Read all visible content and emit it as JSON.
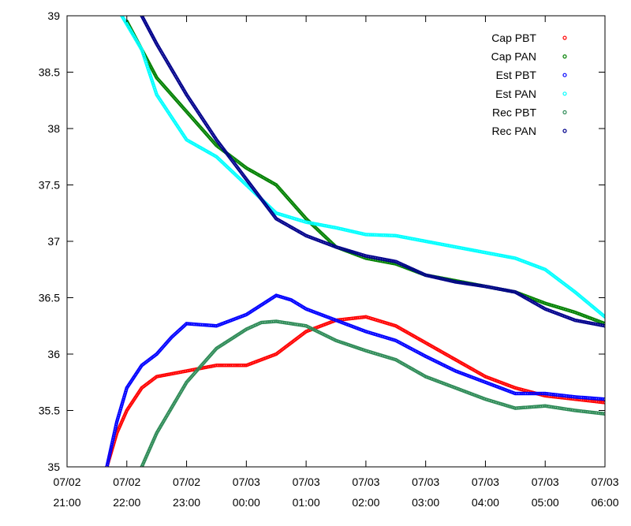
{
  "chart_data": {
    "type": "scatter",
    "title": "",
    "xlabel": "",
    "ylabel": "",
    "xlim": [
      "07/02 21:00",
      "07/03 06:00"
    ],
    "ylim": [
      35,
      39
    ],
    "x_ticks": [
      {
        "date": "07/02",
        "time": "21:00"
      },
      {
        "date": "07/02",
        "time": "22:00"
      },
      {
        "date": "07/02",
        "time": "23:00"
      },
      {
        "date": "07/03",
        "time": "00:00"
      },
      {
        "date": "07/03",
        "time": "01:00"
      },
      {
        "date": "07/03",
        "time": "02:00"
      },
      {
        "date": "07/03",
        "time": "03:00"
      },
      {
        "date": "07/03",
        "time": "04:00"
      },
      {
        "date": "07/03",
        "time": "05:00"
      },
      {
        "date": "07/03",
        "time": "06:00"
      }
    ],
    "y_ticks": [
      "35",
      "35.5",
      "36",
      "36.5",
      "37",
      "37.5",
      "38",
      "38.5",
      "39"
    ],
    "grid": false,
    "legend_position": "top-right",
    "series": [
      {
        "name": "Cap PBT",
        "color": "#ff0000",
        "points": [
          [
            "07/02 21:40",
            35.0
          ],
          [
            "07/02 21:50",
            35.3
          ],
          [
            "07/02 22:00",
            35.5
          ],
          [
            "07/02 22:15",
            35.7
          ],
          [
            "07/02 22:30",
            35.8
          ],
          [
            "07/02 23:00",
            35.85
          ],
          [
            "07/02 23:30",
            35.9
          ],
          [
            "07/03 00:00",
            35.9
          ],
          [
            "07/03 00:30",
            36.0
          ],
          [
            "07/03 00:45",
            36.1
          ],
          [
            "07/03 01:00",
            36.2
          ],
          [
            "07/03 01:30",
            36.3
          ],
          [
            "07/03 02:00",
            36.33
          ],
          [
            "07/03 02:30",
            36.25
          ],
          [
            "07/03 03:00",
            36.1
          ],
          [
            "07/03 03:30",
            35.95
          ],
          [
            "07/03 04:00",
            35.8
          ],
          [
            "07/03 04:30",
            35.7
          ],
          [
            "07/03 05:00",
            35.63
          ],
          [
            "07/03 05:30",
            35.6
          ],
          [
            "07/03 06:00",
            35.57
          ]
        ]
      },
      {
        "name": "Cap PAN",
        "color": "#008000",
        "points": [
          [
            "07/02 22:00",
            38.95
          ],
          [
            "07/02 22:15",
            38.7
          ],
          [
            "07/02 22:30",
            38.45
          ],
          [
            "07/02 23:00",
            38.15
          ],
          [
            "07/02 23:30",
            37.85
          ],
          [
            "07/03 00:00",
            37.65
          ],
          [
            "07/03 00:30",
            37.5
          ],
          [
            "07/03 00:45",
            37.35
          ],
          [
            "07/03 01:00",
            37.2
          ],
          [
            "07/03 01:30",
            36.95
          ],
          [
            "07/03 02:00",
            36.85
          ],
          [
            "07/03 02:30",
            36.8
          ],
          [
            "07/03 03:00",
            36.7
          ],
          [
            "07/03 03:30",
            36.65
          ],
          [
            "07/03 04:00",
            36.6
          ],
          [
            "07/03 04:30",
            36.55
          ],
          [
            "07/03 05:00",
            36.45
          ],
          [
            "07/03 05:30",
            36.37
          ],
          [
            "07/03 06:00",
            36.27
          ]
        ]
      },
      {
        "name": "Est PBT",
        "color": "#0000ff",
        "points": [
          [
            "07/02 21:40",
            35.0
          ],
          [
            "07/02 21:50",
            35.4
          ],
          [
            "07/02 22:00",
            35.7
          ],
          [
            "07/02 22:15",
            35.9
          ],
          [
            "07/02 22:30",
            36.0
          ],
          [
            "07/02 22:45",
            36.15
          ],
          [
            "07/02 23:00",
            36.27
          ],
          [
            "07/02 23:30",
            36.25
          ],
          [
            "07/03 00:00",
            36.35
          ],
          [
            "07/03 00:30",
            36.52
          ],
          [
            "07/03 00:45",
            36.48
          ],
          [
            "07/03 01:00",
            36.4
          ],
          [
            "07/03 01:30",
            36.3
          ],
          [
            "07/03 02:00",
            36.2
          ],
          [
            "07/03 02:30",
            36.12
          ],
          [
            "07/03 03:00",
            35.98
          ],
          [
            "07/03 03:30",
            35.85
          ],
          [
            "07/03 04:00",
            35.75
          ],
          [
            "07/03 04:30",
            35.65
          ],
          [
            "07/03 05:00",
            35.65
          ],
          [
            "07/03 05:30",
            35.62
          ],
          [
            "07/03 06:00",
            35.6
          ]
        ]
      },
      {
        "name": "Est PAN",
        "color": "#00ffff",
        "points": [
          [
            "07/02 21:55",
            39.0
          ],
          [
            "07/02 22:15",
            38.7
          ],
          [
            "07/02 22:30",
            38.3
          ],
          [
            "07/02 23:00",
            37.9
          ],
          [
            "07/02 23:30",
            37.75
          ],
          [
            "07/03 00:00",
            37.5
          ],
          [
            "07/03 00:30",
            37.25
          ],
          [
            "07/03 01:00",
            37.17
          ],
          [
            "07/03 01:30",
            37.12
          ],
          [
            "07/03 02:00",
            37.06
          ],
          [
            "07/03 02:30",
            37.05
          ],
          [
            "07/03 03:00",
            37.0
          ],
          [
            "07/03 03:30",
            36.95
          ],
          [
            "07/03 04:00",
            36.9
          ],
          [
            "07/03 04:30",
            36.85
          ],
          [
            "07/03 05:00",
            36.75
          ],
          [
            "07/03 05:30",
            36.55
          ],
          [
            "07/03 06:00",
            36.33
          ]
        ]
      },
      {
        "name": "Rec PBT",
        "color": "#2e8b57",
        "points": [
          [
            "07/02 22:15",
            35.0
          ],
          [
            "07/02 22:30",
            35.3
          ],
          [
            "07/02 23:00",
            35.75
          ],
          [
            "07/02 23:30",
            36.05
          ],
          [
            "07/03 00:00",
            36.22
          ],
          [
            "07/03 00:15",
            36.28
          ],
          [
            "07/03 00:30",
            36.29
          ],
          [
            "07/03 01:00",
            36.25
          ],
          [
            "07/03 01:30",
            36.12
          ],
          [
            "07/03 02:00",
            36.03
          ],
          [
            "07/03 02:30",
            35.95
          ],
          [
            "07/03 03:00",
            35.8
          ],
          [
            "07/03 03:30",
            35.7
          ],
          [
            "07/03 04:00",
            35.6
          ],
          [
            "07/03 04:30",
            35.52
          ],
          [
            "07/03 05:00",
            35.54
          ],
          [
            "07/03 05:30",
            35.5
          ],
          [
            "07/03 06:00",
            35.47
          ]
        ]
      },
      {
        "name": "Rec PAN",
        "color": "#00008b",
        "points": [
          [
            "07/02 22:15",
            39.0
          ],
          [
            "07/02 22:30",
            38.75
          ],
          [
            "07/02 23:00",
            38.3
          ],
          [
            "07/02 23:30",
            37.9
          ],
          [
            "07/03 00:00",
            37.55
          ],
          [
            "07/03 00:30",
            37.2
          ],
          [
            "07/03 01:00",
            37.05
          ],
          [
            "07/03 01:30",
            36.95
          ],
          [
            "07/03 02:00",
            36.87
          ],
          [
            "07/03 02:30",
            36.82
          ],
          [
            "07/03 03:00",
            36.7
          ],
          [
            "07/03 03:30",
            36.64
          ],
          [
            "07/03 04:00",
            36.6
          ],
          [
            "07/03 04:30",
            36.55
          ],
          [
            "07/03 05:00",
            36.4
          ],
          [
            "07/03 05:30",
            36.3
          ],
          [
            "07/03 06:00",
            36.25
          ]
        ]
      }
    ]
  }
}
